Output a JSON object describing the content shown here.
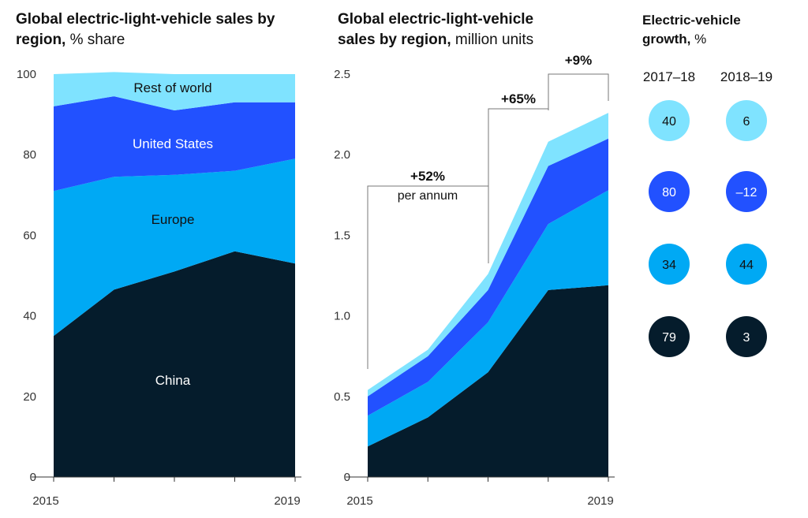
{
  "titles": {
    "left_bold": "Global electric-light-vehicle sales by region,",
    "left_rest": "% share",
    "mid_bold": "Global electric-light-vehicle sales by region,",
    "mid_rest": "million units",
    "right_bold": "Electric-vehicle growth,",
    "right_rest": "%"
  },
  "colors": {
    "china": "#051C2C",
    "europe": "#00A9F4",
    "us": "#2251FF",
    "rest": "#7FE3FF",
    "axis": "#333333",
    "grid": "#999999"
  },
  "chart_data": [
    {
      "type": "area",
      "stacked": true,
      "x": [
        2015,
        2016,
        2017,
        2018,
        2019
      ],
      "xlabels": [
        "2015",
        "2019"
      ],
      "ylim": [
        0,
        100
      ],
      "yticks": [
        "0",
        "20",
        "40",
        "60",
        "80",
        "100"
      ],
      "series": [
        {
          "name": "China",
          "values": [
            35,
            46.5,
            51,
            56,
            53
          ]
        },
        {
          "name": "Europe",
          "values": [
            36,
            28,
            24,
            20,
            26
          ]
        },
        {
          "name": "United States",
          "values": [
            21,
            20,
            16,
            17,
            14
          ]
        },
        {
          "name": "Rest of world",
          "values": [
            8,
            6,
            9,
            7,
            7
          ]
        }
      ]
    },
    {
      "type": "area",
      "stacked": true,
      "x": [
        2015,
        2016,
        2017,
        2018,
        2019
      ],
      "xlabels": [
        "2015",
        "2019"
      ],
      "ylim": [
        0,
        2.5
      ],
      "yticks": [
        "0",
        "0.5",
        "1.0",
        "1.5",
        "2.0",
        "2.5"
      ],
      "series": [
        {
          "name": "China",
          "values": [
            0.19,
            0.37,
            0.65,
            1.16,
            1.19
          ]
        },
        {
          "name": "Europe",
          "values": [
            0.19,
            0.22,
            0.31,
            0.41,
            0.59
          ]
        },
        {
          "name": "United States",
          "values": [
            0.12,
            0.16,
            0.2,
            0.36,
            0.32
          ]
        },
        {
          "name": "Rest of world",
          "values": [
            0.04,
            0.04,
            0.1,
            0.15,
            0.16
          ]
        }
      ],
      "annotations": [
        {
          "text": "+52%",
          "subtext": "per annum"
        },
        {
          "text": "+65%"
        },
        {
          "text": "+9%"
        }
      ]
    },
    {
      "type": "table",
      "columns": [
        "2017–18",
        "2018–19"
      ],
      "rows": [
        {
          "region": "Rest of world",
          "values": [
            "40",
            "6"
          ]
        },
        {
          "region": "United States",
          "values": [
            "80",
            "–12"
          ]
        },
        {
          "region": "Europe",
          "values": [
            "34",
            "44"
          ]
        },
        {
          "region": "China",
          "values": [
            "79",
            "3"
          ]
        }
      ]
    }
  ]
}
